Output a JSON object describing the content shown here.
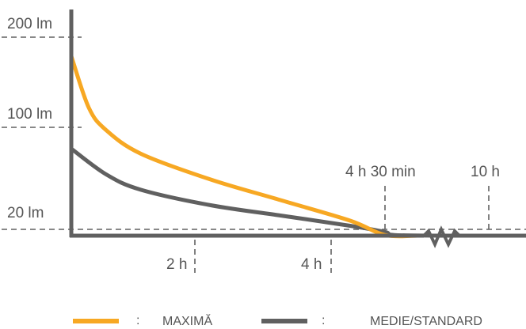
{
  "chart_data": {
    "type": "line",
    "title": "",
    "xlabel": "",
    "ylabel": "",
    "y_ticks": [
      {
        "value": 200,
        "label": "200 lm"
      },
      {
        "value": 100,
        "label": "100 lm"
      },
      {
        "value": 20,
        "label": "20 lm"
      }
    ],
    "x_ticks": [
      {
        "label": "2 h",
        "position": "below"
      },
      {
        "label": "4 h",
        "position": "below"
      },
      {
        "label": "4 h 30 min",
        "position": "above"
      },
      {
        "label": "10 h",
        "position": "above"
      }
    ],
    "axis_break": true,
    "series": [
      {
        "name": "MAXIMĂ",
        "color": "#F7A823",
        "points": [
          [
            0,
            190
          ],
          [
            0.25,
            140
          ],
          [
            0.5,
            118
          ],
          [
            1,
            95
          ],
          [
            2,
            70
          ],
          [
            3,
            50
          ],
          [
            4,
            30
          ],
          [
            4.5,
            16
          ],
          [
            4.8,
            10
          ]
        ]
      },
      {
        "name": "MEDIE/STANDARD",
        "color": "#606060",
        "points": [
          [
            0,
            100
          ],
          [
            0.5,
            75
          ],
          [
            1,
            60
          ],
          [
            2,
            45
          ],
          [
            3,
            35
          ],
          [
            4,
            25
          ],
          [
            4.5,
            19
          ],
          [
            5,
            16
          ],
          [
            8,
            12
          ],
          [
            10,
            8
          ],
          [
            10.5,
            8
          ]
        ]
      }
    ],
    "legend": [
      {
        "label": "MAXIMĂ",
        "separator": ":",
        "color": "#F7A823"
      },
      {
        "label": "MEDIE/STANDARD",
        "separator": ":",
        "color": "#606060"
      }
    ]
  }
}
